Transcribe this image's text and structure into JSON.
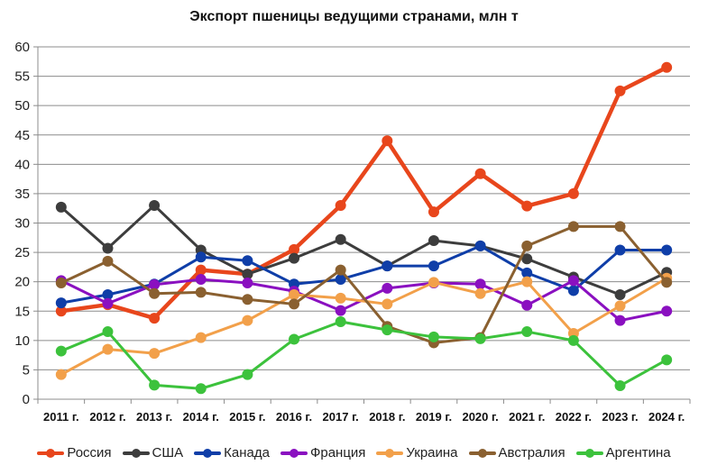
{
  "chart_data": {
    "type": "line",
    "title": "Экспорт пшеницы ведущими странами, млн т",
    "xlabel": "",
    "ylabel": "",
    "ylim": [
      0,
      60
    ],
    "yticks": [
      0,
      5,
      10,
      15,
      20,
      25,
      30,
      35,
      40,
      45,
      50,
      55,
      60
    ],
    "grid": true,
    "legend_position": "bottom",
    "categories": [
      "2011 г.",
      "2012 г.",
      "2013 г.",
      "2014 г.",
      "2015 г.",
      "2016 г.",
      "2017 г.",
      "2018 г.",
      "2019 г.",
      "2020 г.",
      "2021 г.",
      "2022 г.",
      "2023 г.",
      "2024 г."
    ],
    "series": [
      {
        "name": "Россия",
        "color": "#e8461c",
        "values": [
          15.0,
          16.1,
          13.8,
          22.0,
          21.3,
          25.5,
          33.0,
          44.0,
          31.9,
          38.4,
          32.9,
          35.0,
          52.5,
          56.5
        ]
      },
      {
        "name": "США",
        "color": "#3d3d3d",
        "values": [
          32.7,
          25.7,
          33.0,
          25.4,
          21.3,
          24.0,
          27.2,
          22.7,
          27.0,
          26.1,
          23.9,
          20.8,
          17.8,
          21.6
        ]
      },
      {
        "name": "Канада",
        "color": "#0f3ea8",
        "values": [
          16.4,
          17.8,
          19.6,
          24.2,
          23.6,
          19.6,
          20.4,
          22.7,
          22.7,
          26.1,
          21.5,
          18.5,
          25.4,
          25.4
        ]
      },
      {
        "name": "Франция",
        "color": "#8a10c0",
        "values": [
          20.2,
          16.3,
          19.5,
          20.4,
          19.8,
          18.4,
          15.1,
          18.9,
          19.8,
          19.6,
          16.0,
          20.2,
          13.4,
          15.0
        ]
      },
      {
        "name": "Украина",
        "color": "#f2a04a",
        "values": [
          4.2,
          8.5,
          7.8,
          10.5,
          13.4,
          17.8,
          17.2,
          16.2,
          19.9,
          18.0,
          20.0,
          11.2,
          15.9,
          20.6
        ]
      },
      {
        "name": "Австралия",
        "color": "#8a6030",
        "values": [
          19.8,
          23.5,
          18.0,
          18.2,
          17.0,
          16.2,
          22.0,
          12.4,
          9.6,
          10.5,
          26.1,
          29.4,
          29.4,
          19.9
        ]
      },
      {
        "name": "Аргентина",
        "color": "#3cc23c",
        "values": [
          8.2,
          11.5,
          2.4,
          1.8,
          4.2,
          10.2,
          13.2,
          11.8,
          10.6,
          10.3,
          11.5,
          10.0,
          2.3,
          6.7
        ]
      }
    ]
  }
}
